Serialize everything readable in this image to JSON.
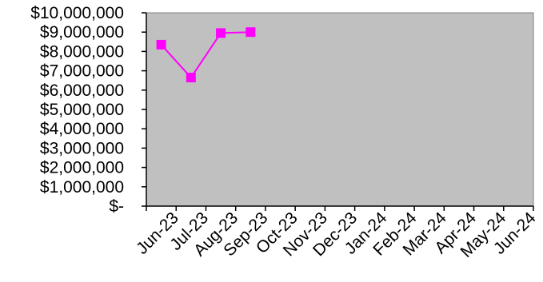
{
  "chart_data": {
    "type": "line",
    "title": "",
    "xlabel": "",
    "ylabel": "",
    "categories": [
      "Jun-23",
      "Jul-23",
      "Aug-23",
      "Sep-23",
      "Oct-23",
      "Nov-23",
      "Dec-23",
      "Jan-24",
      "Feb-24",
      "Mar-24",
      "Apr-24",
      "May-24",
      "Jun-24"
    ],
    "y_tick_labels": [
      "$-",
      "$1,000,000",
      "$2,000,000",
      "$3,000,000",
      "$4,000,000",
      "$5,000,000",
      "$6,000,000",
      "$7,000,000",
      "$8,000,000",
      "$9,000,000",
      "$10,000,000"
    ],
    "ylim": [
      0,
      10000000
    ],
    "grid": false,
    "legend": "none",
    "series": [
      {
        "values": [
          8350000,
          6650000,
          8950000,
          9000000,
          null,
          null,
          null,
          null,
          null,
          null,
          null,
          null,
          null
        ],
        "color": "#ff00ff",
        "marker": "square"
      }
    ],
    "plot_background": "#c0c0c0"
  }
}
